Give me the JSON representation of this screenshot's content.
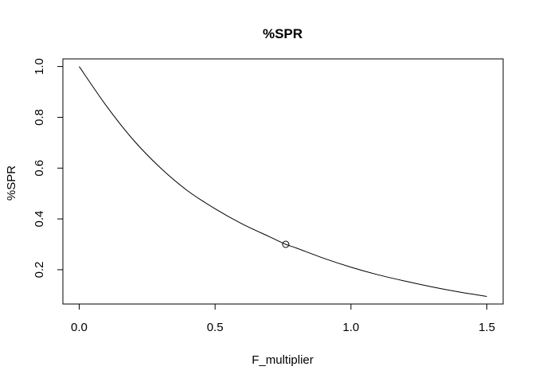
{
  "chart_data": {
    "type": "line",
    "title": "%SPR",
    "xlabel": "F_multiplier",
    "ylabel": "%SPR",
    "xlim": [
      -0.06,
      1.56
    ],
    "ylim": [
      0.065,
      1.03
    ],
    "x_ticks": [
      0.0,
      0.5,
      1.0,
      1.5
    ],
    "x_tick_labels": [
      "0.0",
      "0.5",
      "1.0",
      "1.5"
    ],
    "y_ticks": [
      0.2,
      0.4,
      0.6,
      0.8,
      1.0
    ],
    "y_tick_labels": [
      "0.2",
      "0.4",
      "0.6",
      "0.8",
      "1.0"
    ],
    "grid": false,
    "series": [
      {
        "x": [
          0.0,
          0.1,
          0.2,
          0.3,
          0.4,
          0.5,
          0.6,
          0.7,
          0.76,
          0.8,
          0.9,
          1.0,
          1.1,
          1.2,
          1.3,
          1.4,
          1.5
        ],
        "y": [
          1.0,
          0.845,
          0.71,
          0.6,
          0.51,
          0.44,
          0.38,
          0.33,
          0.3,
          0.285,
          0.245,
          0.21,
          0.18,
          0.155,
          0.132,
          0.112,
          0.095
        ]
      }
    ],
    "points": [
      {
        "x": 0.76,
        "y": 0.3
      }
    ]
  }
}
